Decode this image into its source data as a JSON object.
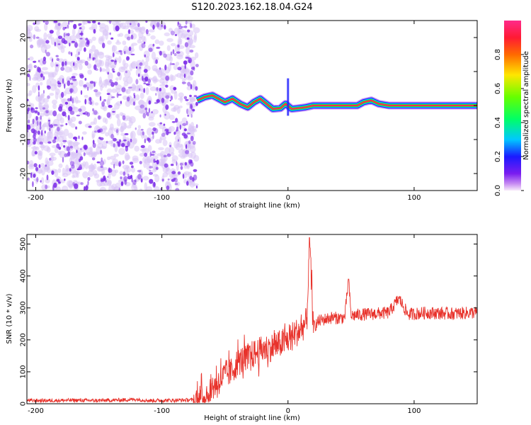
{
  "figure": {
    "title": "S120.2023.162.18.04.G24"
  },
  "colors": {
    "snr_line": "#e8322b",
    "axis": "#000000",
    "noise_dot": "#7d2ee8",
    "noise_halo": "#d9c4f6",
    "trace_core": "#ff2a55",
    "trace_edge": "#00e0ff",
    "trace_mid": "#19e619"
  },
  "chart_data": [
    {
      "type": "heatmap",
      "xlabel": "Height of straight line (km)",
      "ylabel": "Frequency (Hz)",
      "xlim": [
        -207,
        150
      ],
      "ylim": [
        -25,
        25
      ],
      "xticks": [
        -200,
        -100,
        0,
        100
      ],
      "yticks": [
        -20,
        -10,
        0,
        10,
        20
      ],
      "noise_region_x": [
        -207,
        -72
      ],
      "signal_region_x": [
        -72,
        150
      ],
      "trace_center_hz": [
        [
          -72,
          1.5
        ],
        [
          -66,
          2.5
        ],
        [
          -60,
          3.0
        ],
        [
          -55,
          2.0
        ],
        [
          -50,
          1.0
        ],
        [
          -44,
          2.0
        ],
        [
          -38,
          0.5
        ],
        [
          -32,
          -0.5
        ],
        [
          -27,
          1.0
        ],
        [
          -22,
          2.0
        ],
        [
          -17,
          0.5
        ],
        [
          -12,
          -1.0
        ],
        [
          -6,
          -0.8
        ],
        [
          -2,
          0.5
        ],
        [
          3,
          -1.0
        ],
        [
          8,
          -0.8
        ],
        [
          14,
          -0.5
        ],
        [
          20,
          0.0
        ],
        [
          30,
          0.0
        ],
        [
          45,
          0.0
        ],
        [
          55,
          0.0
        ],
        [
          60,
          1.0
        ],
        [
          66,
          1.5
        ],
        [
          72,
          0.5
        ],
        [
          80,
          0.0
        ],
        [
          100,
          0.0
        ],
        [
          150,
          0.0
        ]
      ],
      "colorbar": {
        "label": "Normalized spectral amplitude",
        "range": [
          0,
          1
        ],
        "ticks": [
          "0.0",
          "0.2",
          "0.4",
          "0.6",
          "0.8"
        ],
        "tick_values": [
          0,
          0.2,
          0.4,
          0.6,
          0.8
        ]
      }
    },
    {
      "type": "line",
      "xlabel": "Height of straight line (km)",
      "ylabel": "SNR (10 * v/v)",
      "xlim": [
        -207,
        150
      ],
      "ylim": [
        0,
        530
      ],
      "xticks": [
        -200,
        -100,
        0,
        100
      ],
      "yticks": [
        0,
        100,
        200,
        300,
        400,
        500
      ],
      "series": [
        {
          "x": [
            -207,
            -190,
            -170,
            -150,
            -130,
            -120,
            -110,
            -90,
            -75,
            -68,
            -62,
            -55,
            -50,
            -45,
            -40,
            -35,
            -30,
            -25,
            -20,
            -15,
            -10,
            -5,
            0,
            5,
            10,
            15,
            17,
            20,
            25,
            30,
            35,
            40,
            45,
            48,
            50,
            55,
            60,
            70,
            80,
            88,
            95,
            110,
            130,
            150
          ],
          "y": [
            10,
            10,
            11,
            10,
            12,
            14,
            10,
            11,
            12,
            20,
            45,
            70,
            90,
            100,
            130,
            140,
            150,
            160,
            170,
            175,
            180,
            190,
            200,
            220,
            230,
            260,
            520,
            240,
            260,
            265,
            270,
            268,
            270,
            390,
            275,
            278,
            280,
            282,
            285,
            330,
            280,
            285,
            282,
            286
          ]
        }
      ]
    }
  ]
}
